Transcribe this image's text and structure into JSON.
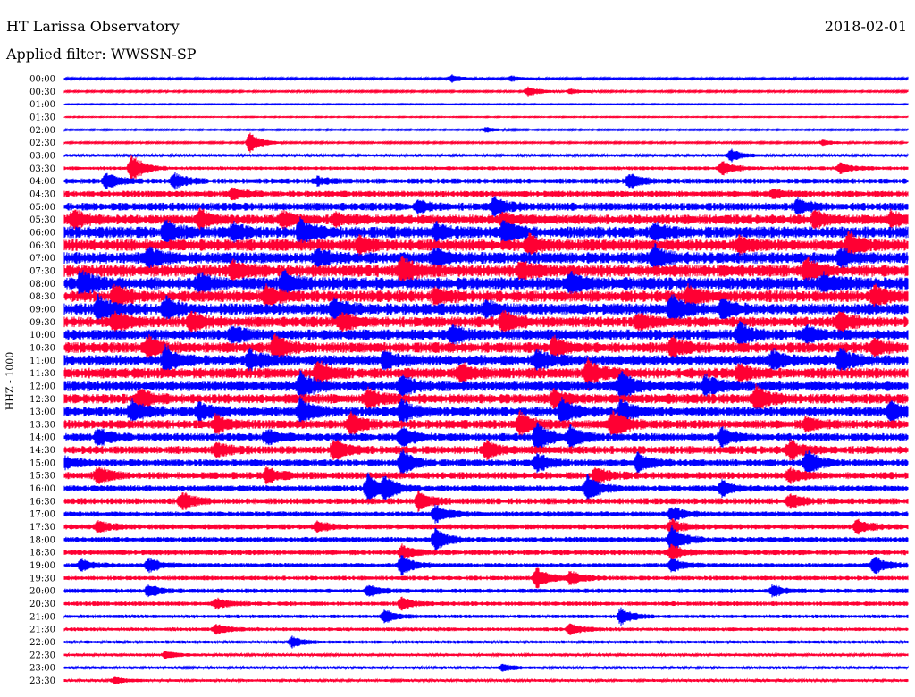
{
  "header": {
    "station": "HT Larissa Observatory",
    "date": "2018-02-01",
    "filter": "Applied filter: WWSSN-SP"
  },
  "chart_data": {
    "type": "line",
    "title": "HT Larissa Observatory",
    "date": "2018-02-01",
    "filter": "WWSSN-SP",
    "ylabel": "HHZ - 1000",
    "xlabel": "",
    "categories": [
      "00:00",
      "00:30",
      "01:00",
      "01:30",
      "02:00",
      "02:30",
      "03:00",
      "03:30",
      "04:00",
      "04:30",
      "05:00",
      "05:30",
      "06:00",
      "06:30",
      "07:00",
      "07:30",
      "08:00",
      "08:30",
      "09:00",
      "09:30",
      "10:00",
      "10:30",
      "11:00",
      "11:30",
      "12:00",
      "12:30",
      "13:00",
      "13:30",
      "14:00",
      "14:30",
      "15:00",
      "15:30",
      "16:00",
      "16:30",
      "17:00",
      "17:30",
      "18:00",
      "18:30",
      "19:00",
      "19:30",
      "20:00",
      "20:30",
      "21:00",
      "21:30",
      "22:00",
      "22:30",
      "23:00",
      "23:30"
    ],
    "series_colors": [
      "#0000ff",
      "#ff0033"
    ],
    "noise_level": [
      1,
      1,
      0.6,
      0.6,
      0.8,
      1,
      1.5,
      2,
      3,
      3.5,
      4.5,
      5.5,
      6.5,
      6.5,
      6.5,
      7,
      7,
      6.5,
      6.5,
      6,
      6,
      6,
      6,
      6,
      6,
      5.5,
      5.5,
      5,
      4.5,
      4.5,
      4,
      4,
      3.5,
      3.5,
      3,
      3,
      3,
      3,
      2.5,
      2.5,
      2.5,
      2.5,
      2,
      2,
      1.8,
      1.5,
      1.5,
      1.5
    ],
    "events": [
      [
        [
          46,
          4
        ],
        [
          53,
          3
        ]
      ],
      [
        [
          55,
          6
        ],
        [
          60,
          3
        ]
      ],
      [],
      [],
      [
        [
          50,
          3
        ]
      ],
      [
        [
          22,
          12
        ],
        [
          90,
          3
        ]
      ],
      [
        [
          79,
          7
        ]
      ],
      [
        [
          8,
          16
        ],
        [
          78,
          8
        ],
        [
          92,
          6
        ]
      ],
      [
        [
          5,
          9
        ],
        [
          13,
          8
        ],
        [
          30,
          4
        ],
        [
          67,
          8
        ]
      ],
      [
        [
          20,
          6
        ],
        [
          84,
          5
        ]
      ],
      [
        [
          42,
          6
        ],
        [
          51,
          10
        ],
        [
          87,
          8
        ]
      ],
      [
        [
          1,
          10
        ],
        [
          16,
          10
        ],
        [
          26,
          8
        ],
        [
          32,
          6
        ],
        [
          52,
          6
        ],
        [
          89,
          8
        ],
        [
          98,
          8
        ]
      ],
      [
        [
          12,
          12
        ],
        [
          20,
          8
        ],
        [
          28,
          14
        ],
        [
          44,
          8
        ],
        [
          52,
          12
        ],
        [
          70,
          8
        ]
      ],
      [
        [
          35,
          8
        ],
        [
          55,
          10
        ],
        [
          80,
          8
        ],
        [
          93,
          12
        ]
      ],
      [
        [
          10,
          10
        ],
        [
          30,
          8
        ],
        [
          44,
          10
        ],
        [
          70,
          12
        ],
        [
          92,
          8
        ]
      ],
      [
        [
          20,
          9
        ],
        [
          40,
          14
        ],
        [
          54,
          8
        ],
        [
          88,
          12
        ]
      ],
      [
        [
          2,
          14
        ],
        [
          16,
          10
        ],
        [
          26,
          12
        ],
        [
          60,
          10
        ],
        [
          90,
          8
        ]
      ],
      [
        [
          6,
          12
        ],
        [
          24,
          10
        ],
        [
          44,
          8
        ],
        [
          74,
          10
        ],
        [
          96,
          10
        ]
      ],
      [
        [
          4,
          14
        ],
        [
          12,
          12
        ],
        [
          32,
          10
        ],
        [
          50,
          8
        ],
        [
          72,
          14
        ],
        [
          78,
          10
        ]
      ],
      [
        [
          6,
          10
        ],
        [
          15,
          9
        ],
        [
          33,
          10
        ],
        [
          52,
          12
        ],
        [
          68,
          8
        ],
        [
          92,
          10
        ]
      ],
      [
        [
          20,
          8
        ],
        [
          46,
          10
        ],
        [
          80,
          12
        ],
        [
          88,
          8
        ]
      ],
      [
        [
          10,
          12
        ],
        [
          25,
          14
        ],
        [
          58,
          10
        ],
        [
          72,
          10
        ],
        [
          96,
          8
        ]
      ],
      [
        [
          12,
          14
        ],
        [
          22,
          10
        ],
        [
          38,
          10
        ],
        [
          56,
          12
        ],
        [
          84,
          10
        ],
        [
          92,
          12
        ]
      ],
      [
        [
          30,
          12
        ],
        [
          47,
          10
        ],
        [
          62,
          14
        ],
        [
          80,
          8
        ]
      ],
      [
        [
          28,
          14
        ],
        [
          40,
          10
        ],
        [
          66,
          16
        ],
        [
          76,
          10
        ]
      ],
      [
        [
          9,
          10
        ],
        [
          36,
          10
        ],
        [
          58,
          8
        ],
        [
          82,
          14
        ]
      ],
      [
        [
          8,
          12
        ],
        [
          16,
          10
        ],
        [
          28,
          14
        ],
        [
          40,
          12
        ],
        [
          59,
          14
        ],
        [
          66,
          12
        ],
        [
          98,
          10
        ]
      ],
      [
        [
          18,
          10
        ],
        [
          34,
          12
        ],
        [
          54,
          14
        ],
        [
          65,
          16
        ],
        [
          88,
          8
        ]
      ],
      [
        [
          4,
          10
        ],
        [
          24,
          8
        ],
        [
          40,
          12
        ],
        [
          56,
          16
        ],
        [
          60,
          12
        ],
        [
          78,
          10
        ]
      ],
      [
        [
          18,
          8
        ],
        [
          32,
          12
        ],
        [
          50,
          10
        ],
        [
          86,
          10
        ]
      ],
      [
        [
          0,
          6
        ],
        [
          40,
          14
        ],
        [
          56,
          10
        ],
        [
          68,
          12
        ],
        [
          88,
          14
        ]
      ],
      [
        [
          4,
          10
        ],
        [
          24,
          8
        ],
        [
          63,
          10
        ],
        [
          86,
          8
        ]
      ],
      [
        [
          36,
          16
        ],
        [
          38,
          12
        ],
        [
          62,
          14
        ],
        [
          78,
          8
        ]
      ],
      [
        [
          14,
          10
        ],
        [
          42,
          10
        ],
        [
          86,
          8
        ]
      ],
      [
        [
          44,
          10
        ],
        [
          72,
          8
        ]
      ],
      [
        [
          4,
          6
        ],
        [
          30,
          6
        ],
        [
          72,
          8
        ],
        [
          94,
          8
        ]
      ],
      [
        [
          44,
          12
        ],
        [
          72,
          14
        ]
      ],
      [
        [
          40,
          8
        ],
        [
          72,
          8
        ]
      ],
      [
        [
          2,
          6
        ],
        [
          10,
          8
        ],
        [
          40,
          12
        ],
        [
          72,
          8
        ],
        [
          96,
          10
        ]
      ],
      [
        [
          56,
          12
        ],
        [
          60,
          8
        ]
      ],
      [
        [
          10,
          6
        ],
        [
          36,
          6
        ],
        [
          84,
          6
        ]
      ],
      [
        [
          18,
          6
        ],
        [
          40,
          6
        ]
      ],
      [
        [
          38,
          8
        ],
        [
          66,
          10
        ]
      ],
      [
        [
          18,
          6
        ],
        [
          60,
          6
        ]
      ],
      [
        [
          27,
          6
        ]
      ],
      [
        [
          12,
          4
        ]
      ],
      [
        [
          52,
          4
        ]
      ],
      [
        [
          6,
          4
        ]
      ]
    ]
  }
}
